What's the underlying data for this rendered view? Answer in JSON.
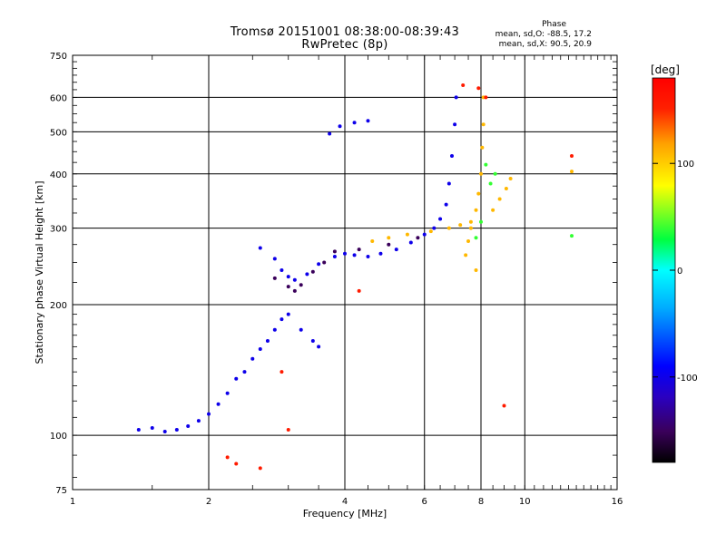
{
  "chart_data": {
    "type": "scatter",
    "title": "Tromsø 20151001 08:38:00-08:39:43",
    "subtitle": "RwPretec (8p)",
    "xlabel": "Frequency [MHz]",
    "ylabel": "Stationary phase Virtual Height [km]",
    "xscale": "log",
    "yscale": "log",
    "xlim": [
      1,
      16
    ],
    "ylim": [
      75,
      750
    ],
    "xticks": [
      1,
      2,
      4,
      6,
      8,
      10,
      16
    ],
    "yticks": [
      75,
      100,
      200,
      300,
      400,
      500,
      600,
      750
    ],
    "grid": true,
    "colorbar": {
      "label": "[deg]",
      "range": [
        -180,
        180
      ],
      "ticks": [
        -100,
        0,
        100
      ]
    },
    "stats": {
      "heading": "Phase",
      "o_mode": "mean, sd,O: -88.5, 17.2",
      "x_mode": "mean, sd,X:  90.5, 20.9"
    },
    "series": [
      {
        "phase_deg": -100,
        "points": [
          [
            1.4,
            103
          ],
          [
            1.5,
            104
          ],
          [
            1.6,
            102
          ],
          [
            1.7,
            103
          ],
          [
            1.8,
            105
          ],
          [
            1.9,
            108
          ],
          [
            2.0,
            112
          ],
          [
            2.1,
            118
          ],
          [
            2.2,
            125
          ],
          [
            2.3,
            135
          ],
          [
            2.4,
            140
          ],
          [
            2.5,
            150
          ],
          [
            2.6,
            158
          ],
          [
            2.7,
            165
          ],
          [
            2.8,
            175
          ],
          [
            2.9,
            185
          ],
          [
            3.0,
            190
          ],
          [
            3.2,
            175
          ],
          [
            3.4,
            165
          ],
          [
            3.5,
            160
          ],
          [
            2.6,
            270
          ],
          [
            2.8,
            255
          ],
          [
            2.9,
            240
          ],
          [
            3.0,
            232
          ],
          [
            3.1,
            228
          ],
          [
            3.3,
            235
          ],
          [
            3.5,
            248
          ],
          [
            3.8,
            258
          ],
          [
            4.0,
            262
          ],
          [
            4.2,
            260
          ],
          [
            4.5,
            258
          ],
          [
            4.8,
            262
          ],
          [
            5.2,
            268
          ],
          [
            5.6,
            278
          ],
          [
            6.0,
            290
          ],
          [
            6.3,
            300
          ],
          [
            6.5,
            315
          ],
          [
            6.7,
            340
          ],
          [
            6.8,
            380
          ],
          [
            6.9,
            440
          ],
          [
            7.0,
            520
          ],
          [
            7.05,
            600
          ],
          [
            3.7,
            495
          ],
          [
            3.9,
            515
          ],
          [
            4.2,
            525
          ],
          [
            4.5,
            530
          ]
        ]
      },
      {
        "phase_deg": -150,
        "points": [
          [
            2.8,
            230
          ],
          [
            3.0,
            220
          ],
          [
            3.1,
            215
          ],
          [
            3.2,
            222
          ],
          [
            3.4,
            238
          ],
          [
            3.6,
            250
          ],
          [
            3.8,
            265
          ],
          [
            4.3,
            268
          ],
          [
            5.0,
            275
          ],
          [
            5.8,
            285
          ]
        ]
      },
      {
        "phase_deg": 110,
        "points": [
          [
            4.6,
            280
          ],
          [
            5.0,
            285
          ],
          [
            5.5,
            290
          ],
          [
            6.2,
            295
          ],
          [
            6.8,
            300
          ],
          [
            7.2,
            305
          ],
          [
            7.6,
            310
          ],
          [
            7.8,
            330
          ],
          [
            7.9,
            360
          ],
          [
            8.0,
            400
          ],
          [
            8.05,
            460
          ],
          [
            8.1,
            520
          ],
          [
            8.1,
            600
          ],
          [
            7.4,
            260
          ],
          [
            7.5,
            280
          ],
          [
            7.6,
            300
          ],
          [
            7.8,
            240
          ],
          [
            8.5,
            330
          ],
          [
            8.8,
            350
          ],
          [
            9.1,
            370
          ],
          [
            9.3,
            390
          ],
          [
            12.7,
            405
          ]
        ]
      },
      {
        "phase_deg": 40,
        "points": [
          [
            7.8,
            285
          ],
          [
            8.0,
            310
          ],
          [
            8.2,
            420
          ],
          [
            8.4,
            380
          ],
          [
            8.6,
            400
          ],
          [
            12.7,
            288
          ]
        ]
      },
      {
        "phase_deg": 155,
        "points": [
          [
            7.3,
            640
          ],
          [
            7.9,
            630
          ],
          [
            8.2,
            600
          ],
          [
            2.3,
            86
          ],
          [
            2.6,
            84
          ],
          [
            2.2,
            89
          ],
          [
            3.0,
            103
          ],
          [
            2.9,
            140
          ],
          [
            9.0,
            117
          ],
          [
            4.3,
            215
          ],
          [
            12.7,
            440
          ]
        ]
      }
    ]
  }
}
